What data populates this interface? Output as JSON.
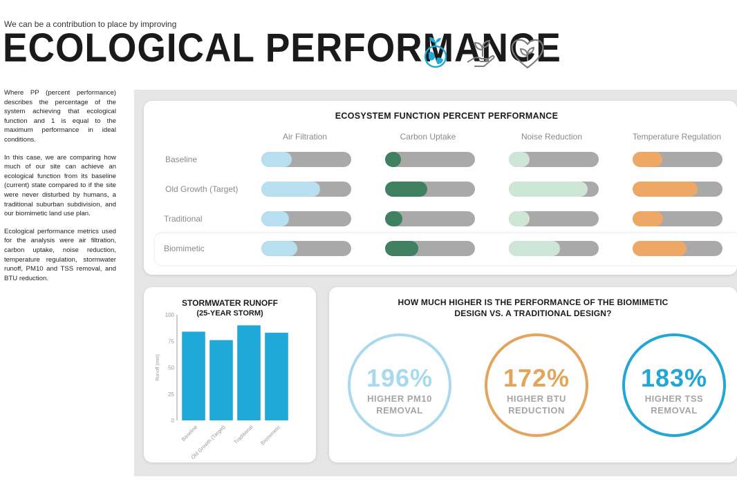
{
  "header": {
    "subtitle": "We can be a contribution to place by improving",
    "title": "ECOLOGICAL PERFORMANCE"
  },
  "icons": [
    "earth-sprout-icon",
    "hand-plant-icon",
    "heart-leaf-icon"
  ],
  "colors": {
    "air": "#b7dff0",
    "carbon": "#3e8060",
    "noise": "#cde6d6",
    "temperature": "#eda866",
    "track": "#a9a9a9",
    "runoff": "#1fa9d8",
    "circle_light": "#a8d9ec",
    "circle_orange": "#e3a45c",
    "circle_blue": "#22a6d6"
  },
  "side_text": [
    "Where PP (percent performance) describes the percentage of the system achieving that ecological function and 1 is equal to the maximum performance in ideal conditions.",
    "In this case, we are comparing how much of our site can achieve an ecological function from its baseline (current) state compared to if the site were never disturbed by humans, a traditional suburban subdivision, and our biomimetic land use plan.",
    "Ecological performance metrics used for the analysis were air filtration, carbon uptake, noise reduction, temperature regulation, stormwater runoff, PM10 and TSS removal, and BTU reduction."
  ],
  "chart_data": [
    {
      "type": "bar",
      "title": "ECOSYSTEM FUNCTION PERCENT PERFORMANCE",
      "categories": [
        "Air Filtration",
        "Carbon Uptake",
        "Noise Reduction",
        "Temperature Regulation"
      ],
      "rows": [
        "Baseline",
        "Old Growth (Target)",
        "Traditional",
        "Biomimetic"
      ],
      "series": [
        {
          "name": "Baseline",
          "values": [
            0.34,
            0.18,
            0.23,
            0.33
          ]
        },
        {
          "name": "Old Growth (Target)",
          "values": [
            0.65,
            0.47,
            0.88,
            0.72
          ]
        },
        {
          "name": "Traditional",
          "values": [
            0.31,
            0.19,
            0.23,
            0.34
          ]
        },
        {
          "name": "Biomimetic",
          "values": [
            0.4,
            0.37,
            0.57,
            0.6
          ]
        }
      ],
      "xlim": [
        0,
        1
      ]
    },
    {
      "type": "bar",
      "title": "STORMWATER RUNOFF",
      "subtitle": "(25-YEAR STORM)",
      "categories": [
        "Baseline",
        "Old Growth (Target)",
        "Traditional",
        "Biomimetic"
      ],
      "values": [
        84,
        76,
        90,
        83
      ],
      "ylabel": "Runoff (mm)",
      "ylim": [
        0,
        100
      ],
      "yticks": [
        "0",
        "25",
        "50",
        "75",
        "100"
      ]
    }
  ],
  "comparison": {
    "title_line1": "HOW MUCH HIGHER IS THE PERFORMANCE OF THE BIOMIMETIC",
    "title_line2": "DESIGN VS. A TRADITIONAL DESIGN?",
    "items": [
      {
        "pct": "196%",
        "line1": "HIGHER PM10",
        "line2": "REMOVAL"
      },
      {
        "pct": "172%",
        "line1": "HIGHER BTU",
        "line2": "REDUCTION"
      },
      {
        "pct": "183%",
        "line1": "HIGHER TSS",
        "line2": "REMOVAL"
      }
    ]
  }
}
